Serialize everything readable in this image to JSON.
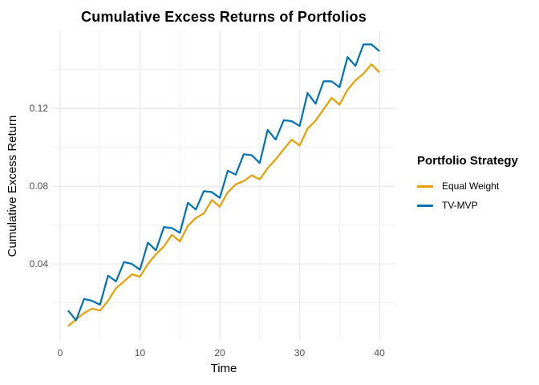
{
  "title": "Cumulative Excess Returns of Portfolios",
  "axes": {
    "x_title": "Time",
    "y_title": "Cumulative Excess Return",
    "x_ticks": [
      "0",
      "10",
      "20",
      "30",
      "40"
    ],
    "y_ticks": [
      "0.04",
      "0.08",
      "0.12"
    ]
  },
  "legend": {
    "title": "Portfolio Strategy",
    "items": [
      {
        "label": "Equal Weight",
        "color": "#E69F00"
      },
      {
        "label": "TV-MVP",
        "color": "#0072B2"
      }
    ]
  },
  "chart_data": {
    "type": "line",
    "title": "Cumulative Excess Returns of Portfolios",
    "xlabel": "Time",
    "ylabel": "Cumulative Excess Return",
    "grid": true,
    "legend_position": "right",
    "xlim": [
      -0.95,
      41.95
    ],
    "ylim": [
      0.0008,
      0.1602
    ],
    "x_breaks": [
      0,
      10,
      20,
      30,
      40
    ],
    "y_breaks": [
      0.04,
      0.08,
      0.12
    ],
    "x_minor_breaks": [
      5,
      15,
      25,
      35
    ],
    "y_minor_breaks": [
      0.02,
      0.06,
      0.1,
      0.14
    ],
    "x": [
      1,
      2,
      3,
      4,
      5,
      6,
      7,
      8,
      9,
      10,
      11,
      12,
      13,
      14,
      15,
      16,
      17,
      18,
      19,
      20,
      21,
      22,
      23,
      24,
      25,
      26,
      27,
      28,
      29,
      30,
      31,
      32,
      33,
      34,
      35,
      36,
      37,
      38,
      39,
      40
    ],
    "series": [
      {
        "name": "Equal Weight",
        "color": "#E69F00",
        "values": [
          0.008,
          0.0114,
          0.0147,
          0.017,
          0.016,
          0.021,
          0.0275,
          0.031,
          0.0347,
          0.0334,
          0.04,
          0.045,
          0.049,
          0.055,
          0.0516,
          0.0596,
          0.0637,
          0.066,
          0.0729,
          0.0695,
          0.0769,
          0.081,
          0.0827,
          0.0856,
          0.0835,
          0.0893,
          0.0939,
          0.099,
          0.104,
          0.101,
          0.1097,
          0.1138,
          0.1196,
          0.1255,
          0.122,
          0.1297,
          0.1345,
          0.138,
          0.1428,
          0.1386
        ]
      },
      {
        "name": "TV-MVP",
        "color": "#0072B2",
        "values": [
          0.016,
          0.011,
          0.022,
          0.021,
          0.019,
          0.034,
          0.031,
          0.041,
          0.04,
          0.037,
          0.051,
          0.047,
          0.059,
          0.0585,
          0.056,
          0.0715,
          0.068,
          0.0775,
          0.077,
          0.074,
          0.088,
          0.086,
          0.0965,
          0.096,
          0.092,
          0.109,
          0.104,
          0.114,
          0.1135,
          0.111,
          0.128,
          0.1225,
          0.134,
          0.134,
          0.131,
          0.1465,
          0.142,
          0.153,
          0.153,
          0.1495
        ]
      }
    ]
  }
}
